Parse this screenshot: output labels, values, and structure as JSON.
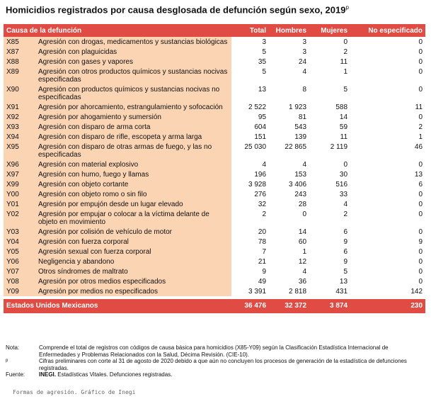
{
  "header": {
    "title": "Homicidios registrados por causa desglosada de defunción según sexo, 2019",
    "title_sup": "p"
  },
  "table": {
    "columns": [
      "Causa de la defunción",
      "Total",
      "Hombres",
      "Mujeres",
      "No especificado"
    ],
    "rows": [
      [
        "X85",
        "Agresión con drogas, medicamentos y sustancias biológicas",
        "3",
        "3",
        "0",
        "0"
      ],
      [
        "X87",
        "Agresión con plaguicidas",
        "5",
        "3",
        "2",
        "0"
      ],
      [
        "X88",
        "Agresión con gases y vapores",
        "35",
        "24",
        "11",
        "0"
      ],
      [
        "X89",
        "Agresión con otros productos químicos y sustancias nocivas especificadas",
        "5",
        "4",
        "1",
        "0"
      ],
      [
        "X90",
        "Agresión con productos químicos y sustancias nocivas no especificadas",
        "13",
        "8",
        "5",
        "0"
      ],
      [
        "X91",
        "Agresión por ahorcamiento, estrangulamiento y sofocación",
        "2 522",
        "1 923",
        "588",
        "11"
      ],
      [
        "X92",
        "Agresión por ahogamiento y sumersión",
        "95",
        "81",
        "14",
        "0"
      ],
      [
        "X93",
        "Agresión con disparo de arma corta",
        "604",
        "543",
        "59",
        "2"
      ],
      [
        "X94",
        "Agresión con disparo de rifle, escopeta y arma larga",
        "151",
        "139",
        "11",
        "1"
      ],
      [
        "X95",
        "Agresión con disparo de otras armas de fuego, y las no especificadas",
        "25 030",
        "22 865",
        "2 119",
        "46"
      ],
      [
        "X96",
        "Agresión con material explosivo",
        "4",
        "4",
        "0",
        "0"
      ],
      [
        "X97",
        "Agresión con humo, fuego y llamas",
        "196",
        "153",
        "30",
        "13"
      ],
      [
        "X99",
        "Agresión con objeto cortante",
        "3 928",
        "3 406",
        "516",
        "6"
      ],
      [
        "Y00",
        "Agresión con objeto romo o sin filo",
        "276",
        "243",
        "33",
        "0"
      ],
      [
        "Y01",
        "Agresión por empujón desde un lugar elevado",
        "32",
        "28",
        "4",
        "0"
      ],
      [
        "Y02",
        "Agresión por empujar o colocar a la víctima delante de objeto en movimiento",
        "2",
        "0",
        "2",
        "0"
      ],
      [
        "Y03",
        "Agresión por colisión de vehículo de motor",
        "20",
        "14",
        "6",
        "0"
      ],
      [
        "Y04",
        "Agresión con fuerza corporal",
        "78",
        "60",
        "9",
        "9"
      ],
      [
        "Y05",
        "Agresión sexual con fuerza corporal",
        "7",
        "1",
        "6",
        "0"
      ],
      [
        "Y06",
        "Negligencia y abandono",
        "21",
        "12",
        "9",
        "0"
      ],
      [
        "Y07",
        "Otros síndromes de maltrato",
        "9",
        "4",
        "5",
        "0"
      ],
      [
        "Y08",
        "Agresión por otros medios especificados",
        "49",
        "36",
        "13",
        "0"
      ],
      [
        "Y09",
        "Agresión por medios no especificados",
        "3 391",
        "2 818",
        "431",
        "142"
      ]
    ],
    "total": [
      "Estados Unidos Mexicanos",
      "36 476",
      "32 372",
      "3 874",
      "230"
    ]
  },
  "notes": {
    "nota_label": "Nota:",
    "nota_text": "Comprende el total de registros con códigos de causa básica para homicidios (X85-Y09) según la Clasificación Estadística Internacional de Enfermedades y Problemas Relacionados con la Salud, Décima Revisión. (CIE-10).",
    "p_label": "p",
    "p_text": "Cifras preliminares con corte al 31 de agosto de 2020 debido a que aún no concluyen los procesos de generación de la estadística de defunciones registradas.",
    "fuente_label": "Fuente:",
    "fuente_bold": "INEGI.",
    "fuente_text": "Estadísticas Vitales. Defunciones registradas."
  },
  "caption": "Formas de agresión. Gráfico de Inegi"
}
